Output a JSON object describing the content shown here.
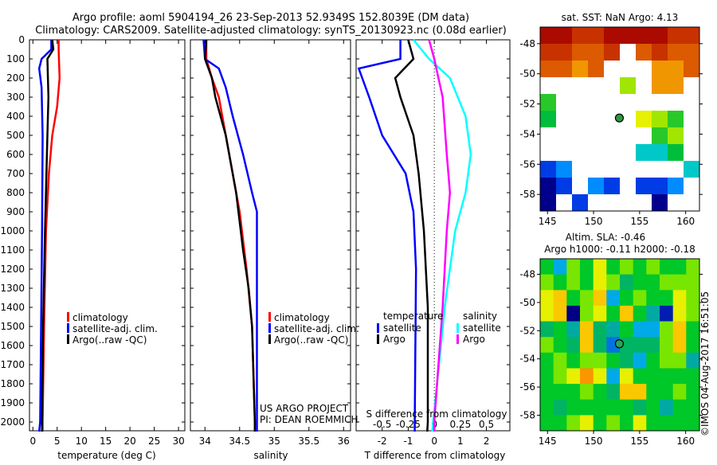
{
  "title_line1": "Argo profile: aoml 5904194_26 23-Sep-2013 52.9349S 152.8039E (DM data)",
  "title_line2": "Climatology: CARS2009. Satellite-adjusted climatology: synTS_20130923.nc (0.08d earlier)",
  "colors": {
    "climatology": "#ff0000",
    "satellite": "#0000ff",
    "argo": "#000000",
    "sal_satellite": "#00ffff",
    "sal_argo": "#ff00ff"
  },
  "chart_data": [
    {
      "type": "line",
      "name": "temperature",
      "xlabel": "temperature (deg C)",
      "xlim": [
        -0.7,
        31.3
      ],
      "xticks": [
        "0",
        "5",
        "10",
        "15",
        "20",
        "25",
        "30"
      ],
      "ylim": [
        0,
        2060
      ],
      "yticks": [
        "0",
        "100",
        "200",
        "300",
        "400",
        "500",
        "600",
        "700",
        "800",
        "900",
        "1000",
        "1100",
        "1200",
        "1300",
        "1400",
        "1500",
        "1600",
        "1700",
        "1800",
        "1900",
        "2000"
      ],
      "legend": [
        "climatology",
        "satellite-adj. clim.",
        "Argo(..raw -QC)"
      ],
      "series": [
        {
          "name": "climatology",
          "depth": [
            0,
            50,
            200,
            350,
            500,
            700,
            1000,
            1500,
            2000,
            2050
          ],
          "values": [
            5.3,
            5.3,
            5.5,
            5.0,
            4.0,
            3.3,
            2.7,
            2.3,
            2.0,
            2.0
          ]
        },
        {
          "name": "satellite-adj. clim.",
          "depth": [
            0,
            50,
            100,
            150,
            250,
            500,
            1000,
            1500,
            2000,
            2050
          ],
          "values": [
            3.8,
            3.8,
            1.8,
            1.3,
            1.8,
            2.0,
            1.9,
            1.7,
            1.5,
            1.3
          ]
        },
        {
          "name": "Argo",
          "depth": [
            0,
            50,
            100,
            300,
            500,
            1000,
            1500,
            2000,
            2050
          ],
          "values": [
            4.0,
            4.2,
            3.0,
            3.2,
            3.0,
            2.5,
            2.1,
            1.9,
            1.9
          ]
        }
      ]
    },
    {
      "type": "line",
      "name": "salinity",
      "xlabel": "salinity",
      "xlim": [
        33.79,
        36.1
      ],
      "xticks": [
        "34",
        "34.5",
        "35",
        "35.5",
        "36"
      ],
      "legend": [
        "climatology",
        "satellite-adj. clim.",
        "Argo(..raw -QC)"
      ],
      "annotation": [
        "US ARGO PROJECT",
        "PI: DEAN ROEMMICH"
      ],
      "series": [
        {
          "name": "climatology",
          "depth": [
            0,
            100,
            200,
            300,
            500,
            700,
            900,
            1200,
            1500,
            2000,
            2050
          ],
          "values": [
            34.02,
            34.02,
            34.1,
            34.2,
            34.3,
            34.4,
            34.5,
            34.6,
            34.68,
            34.72,
            34.72
          ]
        },
        {
          "name": "satellite-adj. clim.",
          "depth": [
            0,
            100,
            150,
            250,
            400,
            600,
            800,
            900,
            2000,
            2050
          ],
          "values": [
            33.98,
            34.0,
            34.2,
            34.3,
            34.4,
            34.55,
            34.68,
            34.75,
            34.75,
            34.75
          ]
        },
        {
          "name": "Argo",
          "depth": [
            0,
            100,
            200,
            300,
            500,
            800,
            1100,
            1300,
            1500,
            2000,
            2050
          ],
          "values": [
            34.02,
            34.0,
            34.1,
            34.15,
            34.3,
            34.45,
            34.55,
            34.63,
            34.68,
            34.72,
            34.72
          ]
        }
      ]
    },
    {
      "type": "line",
      "name": "difference",
      "xlabel": "T difference from climatology",
      "x2label": "S difference from climatology",
      "xlim": [
        -3,
        2.9
      ],
      "xticks": [
        "-2",
        "-1",
        "0",
        "1",
        "2"
      ],
      "x2ticks": [
        "-0.5",
        "-0.25",
        "0",
        "0.25",
        "0.5"
      ],
      "legend_t_title": "temperature",
      "legend_s_title": "salinity",
      "legend_t": [
        "satellite",
        "Argo"
      ],
      "legend_s": [
        "satellite",
        "Argo"
      ],
      "series": [
        {
          "name": "T satellite",
          "units": "T",
          "depth": [
            0,
            100,
            150,
            300,
            500,
            700,
            900,
            1200,
            2000,
            2050
          ],
          "values": [
            -1.3,
            -1.3,
            -2.9,
            -2.5,
            -2.0,
            -1.1,
            -0.8,
            -0.7,
            -0.75,
            -0.75
          ]
        },
        {
          "name": "T Argo",
          "units": "T",
          "depth": [
            0,
            100,
            200,
            300,
            500,
            700,
            1000,
            1400,
            2000,
            2050
          ],
          "values": [
            -1.0,
            -0.8,
            -1.5,
            -1.3,
            -0.8,
            -0.6,
            -0.4,
            -0.25,
            -0.25,
            -0.27
          ]
        },
        {
          "name": "S satellite",
          "units": "S",
          "depth": [
            0,
            100,
            200,
            400,
            600,
            800,
            1000,
            1400,
            2000,
            2050
          ],
          "values": [
            -0.2,
            -0.05,
            0.15,
            0.3,
            0.35,
            0.3,
            0.2,
            0.1,
            -0.01,
            -0.02
          ]
        },
        {
          "name": "S Argo",
          "units": "S",
          "depth": [
            0,
            100,
            300,
            600,
            800,
            1000,
            1400,
            2000,
            2050
          ],
          "values": [
            -0.05,
            0.0,
            0.08,
            0.12,
            0.15,
            0.12,
            0.08,
            0.0,
            0.0
          ]
        }
      ]
    },
    {
      "type": "heatmap",
      "name": "sst-map",
      "title": "sat. SST: NaN Argo: 4.13",
      "lon_range": [
        144.2,
        161.5
      ],
      "lat_range": [
        -59.1,
        -46.9
      ],
      "xticks": [
        "145",
        "150",
        "155",
        "160"
      ],
      "yticks": [
        "-48",
        "-50",
        "-52",
        "-54",
        "-56",
        "-58"
      ],
      "grid": [
        [
          11,
          11,
          10,
          10,
          11,
          11,
          11,
          11,
          10,
          10
        ],
        [
          10,
          10,
          9,
          9,
          10,
          null,
          9,
          10,
          9,
          9
        ],
        [
          9,
          9,
          8,
          9,
          null,
          null,
          null,
          8,
          8,
          9
        ],
        [
          null,
          null,
          null,
          null,
          null,
          5,
          null,
          8,
          8,
          null
        ],
        [
          4,
          null,
          null,
          null,
          null,
          null,
          null,
          null,
          null,
          null
        ],
        [
          3,
          null,
          null,
          null,
          null,
          null,
          6,
          5,
          4,
          null
        ],
        [
          null,
          null,
          null,
          null,
          null,
          null,
          null,
          4,
          5,
          null
        ],
        [
          null,
          null,
          null,
          null,
          null,
          null,
          2,
          2,
          3,
          null
        ],
        [
          0,
          1,
          null,
          null,
          null,
          null,
          null,
          null,
          null,
          2
        ],
        [
          -1,
          0,
          null,
          1,
          0,
          null,
          0,
          0,
          1,
          null
        ],
        [
          -1,
          null,
          0,
          null,
          null,
          null,
          null,
          -1,
          null,
          null
        ]
      ],
      "argo_marker": [
        152.8,
        -52.93
      ]
    },
    {
      "type": "heatmap",
      "name": "sla-map",
      "title": "Altim. SLA: -0.46",
      "subtitle": "Argo h1000: -0.11 h2000: -0.18",
      "lon_range": [
        144.2,
        161.5
      ],
      "lat_range": [
        -59.1,
        -46.9
      ],
      "xticks": [
        "145",
        "150",
        "155",
        "160"
      ],
      "yticks": [
        "-48",
        "-50",
        "-52",
        "-54",
        "-56",
        "-58"
      ],
      "grid": [
        [
          0.0,
          -0.3,
          0.1,
          0.0,
          0.2,
          0.0,
          0.1,
          0.0,
          0.1,
          0.0,
          0.0,
          0.1
        ],
        [
          0.1,
          0.0,
          0.1,
          0.0,
          0.2,
          0.1,
          -0.1,
          0.0,
          0.0,
          0.1,
          0.1,
          0.1
        ],
        [
          0.2,
          0.3,
          0.0,
          0.1,
          0.3,
          -0.3,
          0.0,
          0.1,
          0.0,
          0.0,
          0.2,
          0.1
        ],
        [
          0.2,
          0.3,
          -0.7,
          0.1,
          0.2,
          0.0,
          0.3,
          0.0,
          -0.2,
          -0.6,
          0.2,
          0.1
        ],
        [
          -0.1,
          0.0,
          -0.2,
          0.3,
          -0.1,
          -0.2,
          0.0,
          -0.3,
          -0.3,
          0.1,
          0.3,
          0.0
        ],
        [
          0.1,
          0.0,
          -0.1,
          0.3,
          -0.1,
          -0.4,
          -0.1,
          -0.1,
          -0.1,
          0.1,
          0.3,
          0.0
        ],
        [
          0.0,
          0.1,
          0.0,
          0.1,
          0.1,
          0.0,
          -0.1,
          -0.3,
          0.0,
          0.1,
          0.1,
          -0.2
        ],
        [
          0.0,
          0.1,
          0.2,
          0.4,
          0.2,
          -0.3,
          0.2,
          0.0,
          0.0,
          0.0,
          0.0,
          0.0
        ],
        [
          0.0,
          0.0,
          0.0,
          0.1,
          0.0,
          -0.1,
          0.3,
          0.3,
          0.0,
          0.0,
          0.1,
          0.0
        ],
        [
          0.0,
          -0.1,
          0.0,
          0.0,
          0.0,
          0.0,
          0.0,
          -0.1,
          0.0,
          -0.2,
          0.0,
          0.0
        ],
        [
          0.0,
          0.0,
          0.1,
          0.2,
          0.0,
          0.1,
          0.0,
          0.2,
          0.0,
          0.0,
          0.0,
          0.0
        ]
      ],
      "argo_marker": [
        152.8,
        -52.93
      ]
    }
  ],
  "credit": "©IMOS 04-Aug-2017 16:51:05"
}
